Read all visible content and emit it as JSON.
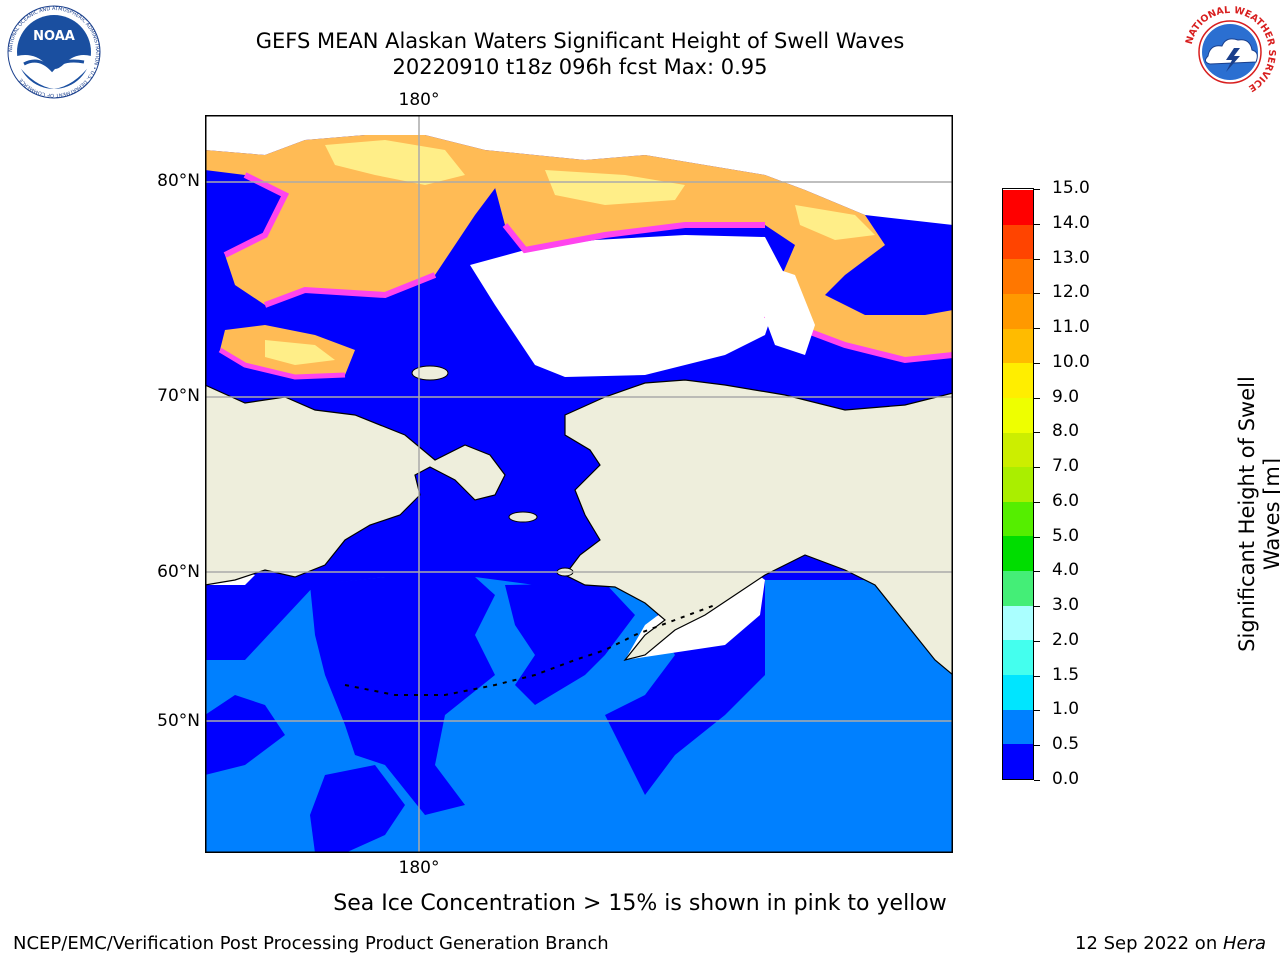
{
  "title_line1": "GEFS MEAN Alaskan Waters Significant Height of Swell Waves",
  "title_line2": "20220910 t18z 096h fcst   Max: 0.95",
  "map": {
    "lon_labels": [
      "180°",
      "180°"
    ],
    "lat_labels": [
      "80°N",
      "70°N",
      "60°N",
      "50°N"
    ],
    "colors": {
      "ocean_deep": "#0000ff",
      "ocean_mid": "#0080ff",
      "land": "#eeeedc",
      "ice_pink": "#ff44ee",
      "ice_orange": "#ffbb55",
      "ice_yellow": "#ffee88",
      "no_data": "#ffffff"
    }
  },
  "colorbar": {
    "label": "Significant Height of Swell Waves [m]",
    "ticks": [
      "0.0",
      "0.5",
      "1.0",
      "1.5",
      "2.0",
      "3.0",
      "4.0",
      "5.0",
      "6.0",
      "7.0",
      "8.0",
      "9.0",
      "10.0",
      "11.0",
      "12.0",
      "13.0",
      "14.0",
      "15.0"
    ],
    "colors": [
      "#0000ff",
      "#0080ff",
      "#00e5ff",
      "#44ffee",
      "#aaffff",
      "#44ee77",
      "#00dd00",
      "#55ee00",
      "#aaee00",
      "#ccee00",
      "#eeff00",
      "#ffee00",
      "#ffbb00",
      "#ff9900",
      "#ff7700",
      "#ff4400",
      "#ff0000"
    ]
  },
  "note": "Sea Ice Concentration > 15% is shown in pink to yellow",
  "footer_left": "NCEP/EMC/Verification Post Processing Product Generation Branch",
  "footer_right_date": "12 Sep 2022 on ",
  "footer_right_host": "Hera",
  "logos": {
    "noaa_text": "NOAA",
    "noaa_ring": "NATIONAL OCEANIC AND ATMOSPHERIC ADMINISTRATION • U.S. DEPARTMENT OF COMMERCE",
    "nws_ring": "NATIONAL WEATHER SERVICE"
  }
}
